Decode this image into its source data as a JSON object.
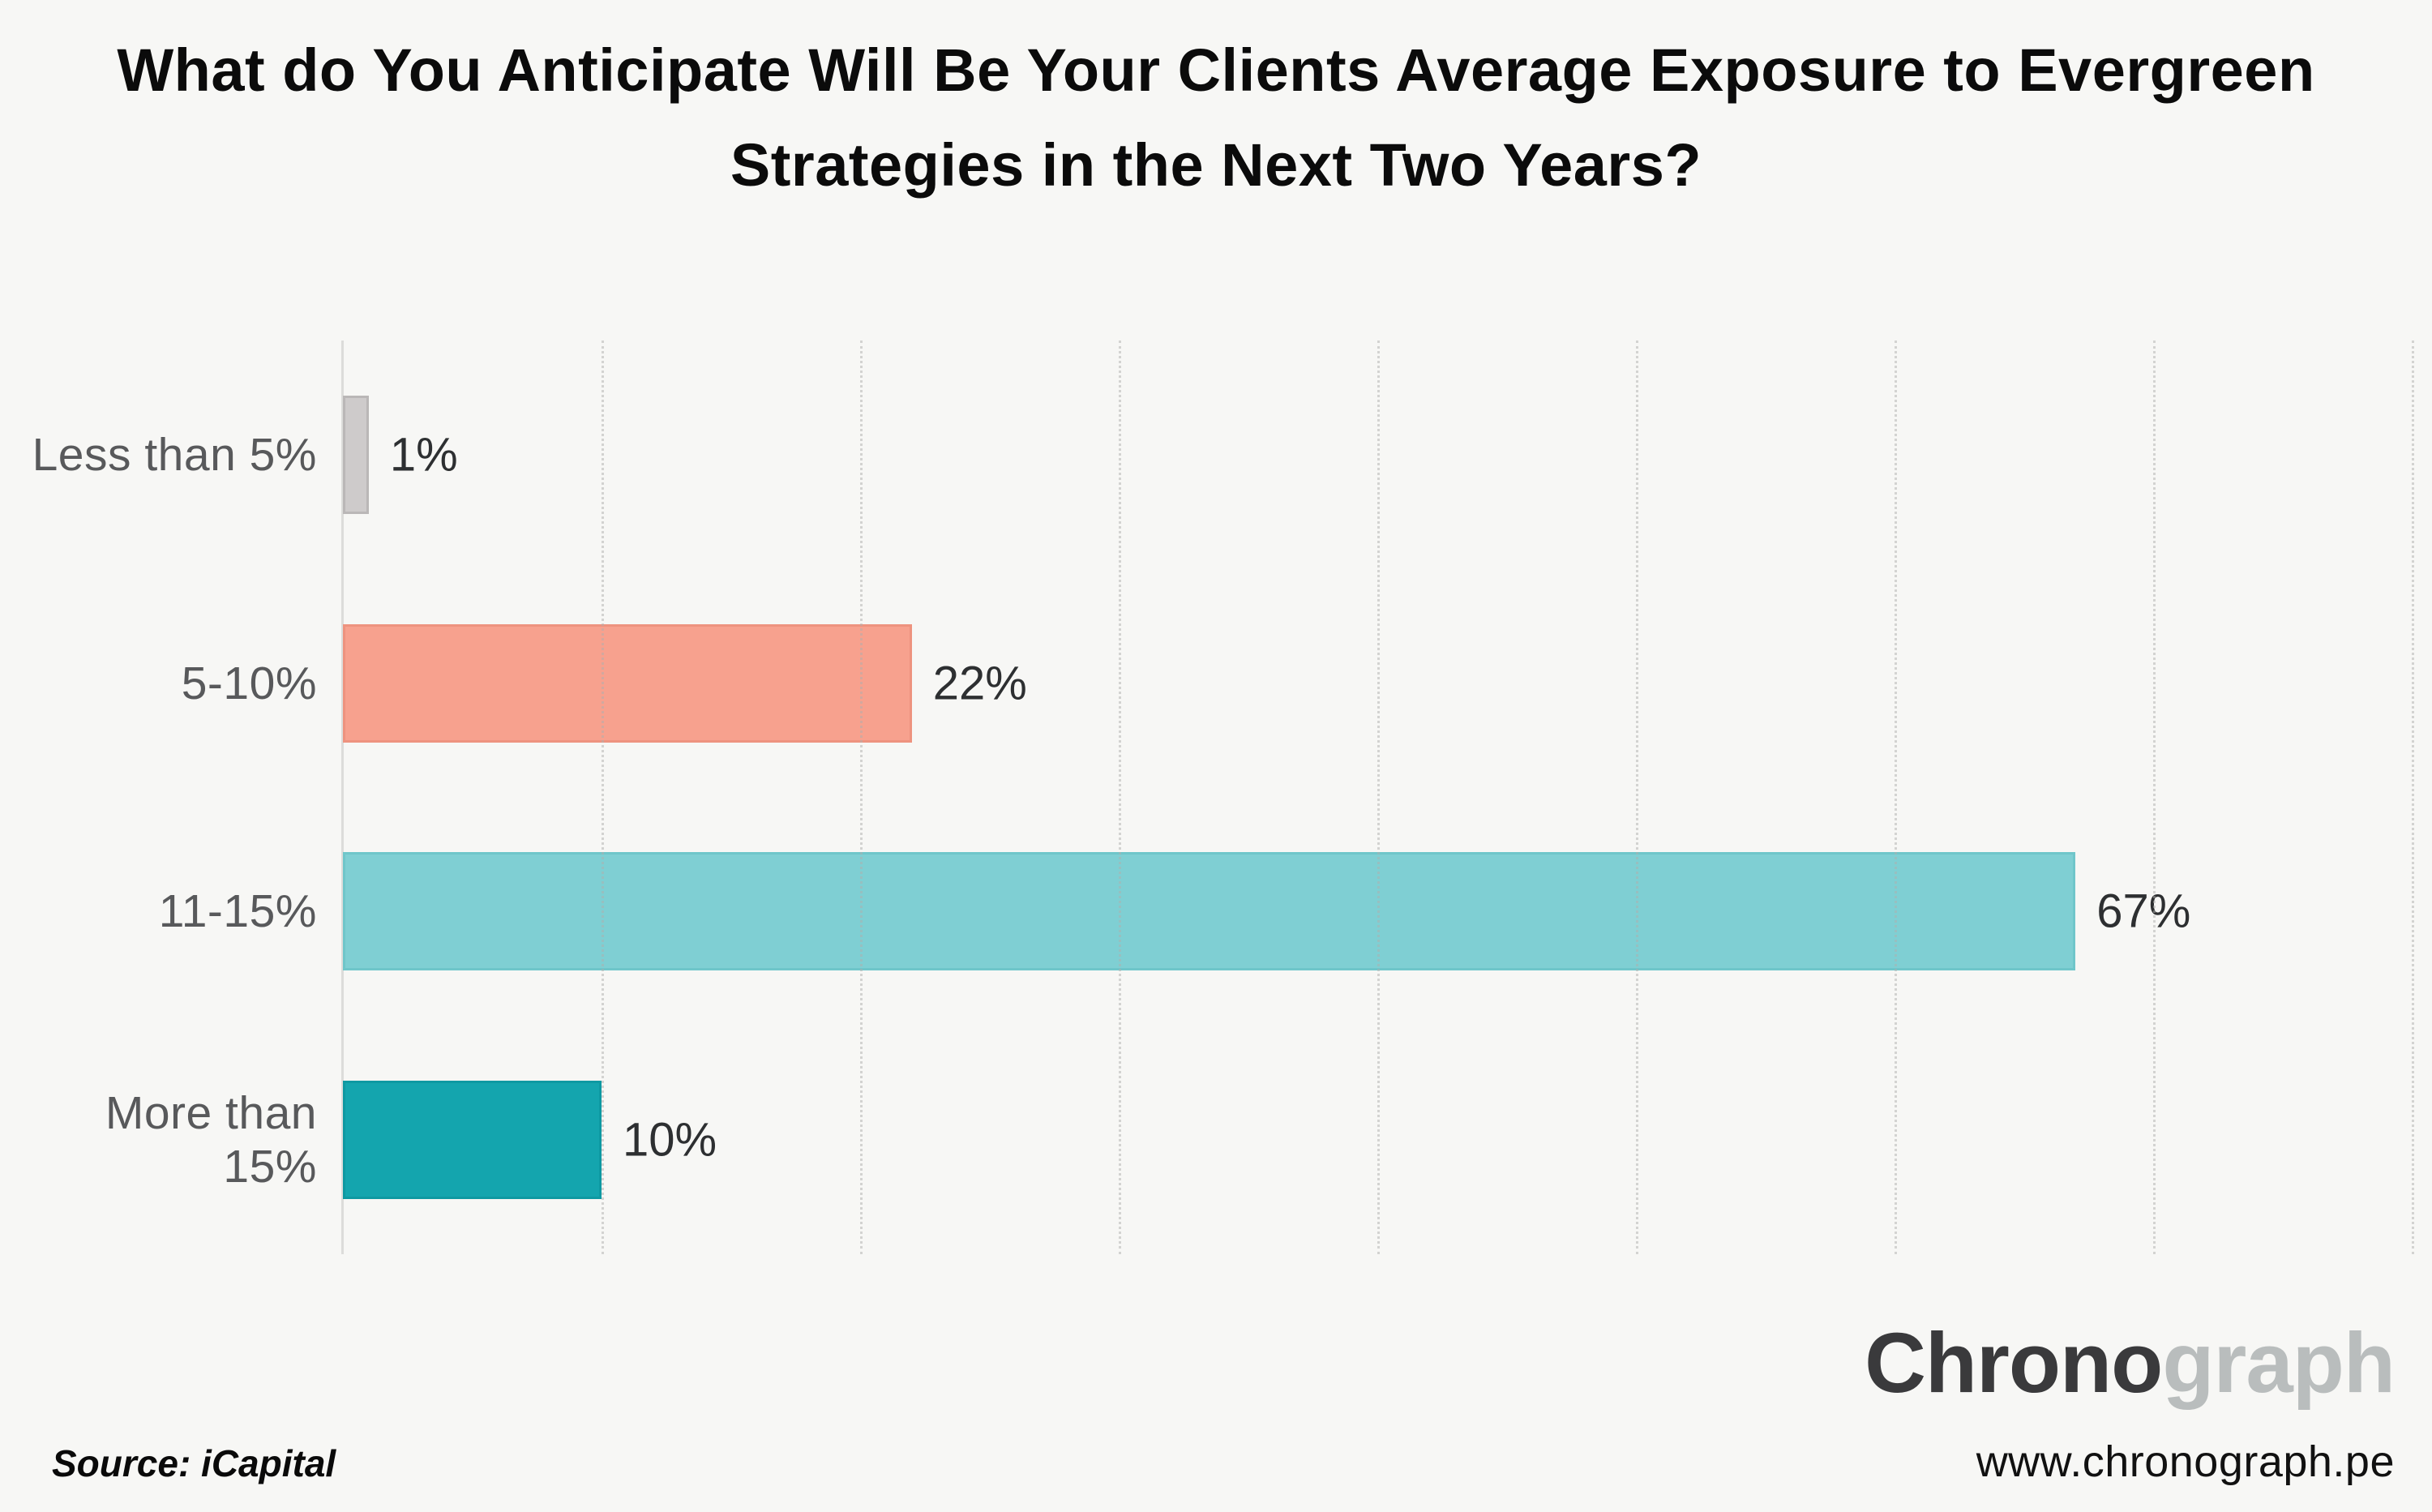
{
  "title": "What do You Anticipate Will Be Your Clients Average Exposure to Evergreen Strategies in the Next Two Years?",
  "chart_data": {
    "type": "bar",
    "orientation": "horizontal",
    "title": "What do You Anticipate Will Be Your Clients Average Exposure to Evergreen Strategies in the Next Two Years?",
    "categories": [
      "Less than 5%",
      "5-10%",
      "11-15%",
      "More than 15%"
    ],
    "values": [
      1,
      22,
      67,
      10
    ],
    "value_labels": [
      "1%",
      "22%",
      "67%",
      "10%"
    ],
    "xlabel": "",
    "ylabel": "",
    "xlim": [
      0,
      80
    ],
    "gridline_interval": 10,
    "grid": "vertical-dotted",
    "legend": "none",
    "bar_colors": [
      "#CECBCB",
      "#F7A18E",
      "#7FCFD3",
      "#14A5AE"
    ],
    "bar_border_colors": [
      "#BAB7B7",
      "#EE937F",
      "#6FC6CA",
      "#0E99A2"
    ]
  },
  "footer": {
    "source_label": "Source: iCapital",
    "brand": {
      "part1": "Chrono",
      "part2": "graph"
    },
    "website": "www.chronograph.pe"
  },
  "colors": {
    "background": "#F7F7F5",
    "axis_line": "#DCDCDA",
    "gridline": "#B0B0AE",
    "title_text": "#0B0B0B",
    "category_label_text": "#58595B",
    "value_label_text": "#2D2F31",
    "brand_dark": "#3A3A3C",
    "brand_light": "#B9BDBD",
    "website_text": "#111111",
    "source_text": "#0A0A0A"
  }
}
